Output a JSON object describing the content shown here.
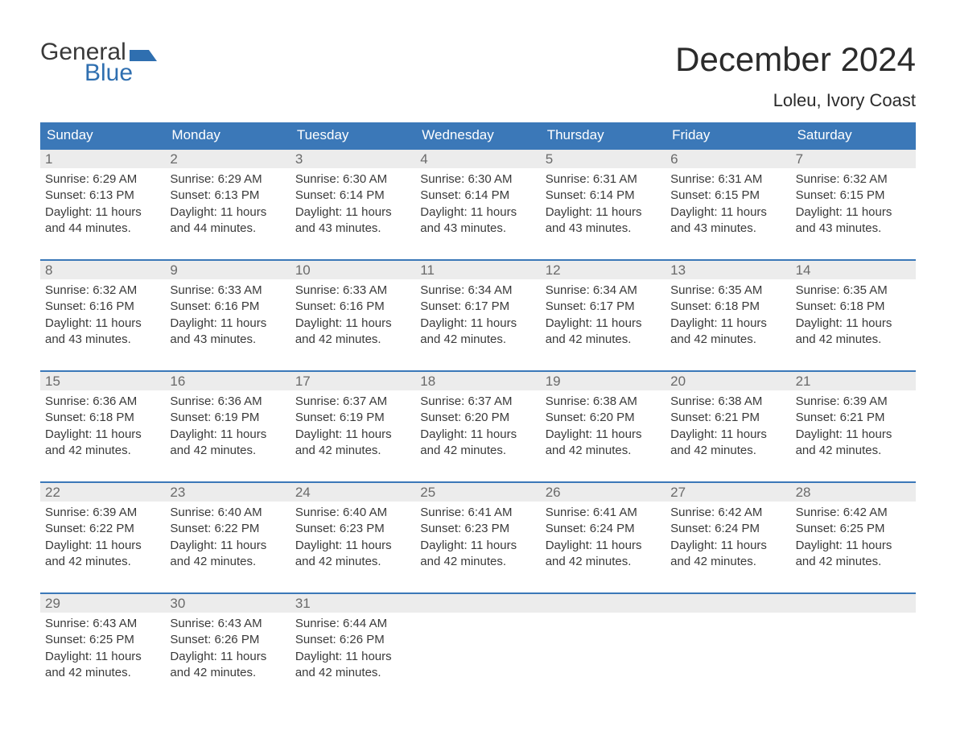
{
  "logo": {
    "text_general": "General",
    "text_blue": "Blue",
    "brand_color": "#2f6fb0"
  },
  "title": "December 2024",
  "location": "Loleu, Ivory Coast",
  "colors": {
    "header_bg": "#3b78b8",
    "header_text": "#ffffff",
    "daynum_bg": "#ececec",
    "daynum_text": "#6a6a6a",
    "body_text": "#3a3a3a",
    "week_border": "#3b78b8",
    "page_bg": "#ffffff"
  },
  "fonts": {
    "title_size_pt": 32,
    "location_size_pt": 17,
    "dow_size_pt": 13,
    "daynum_size_pt": 13,
    "body_size_pt": 11
  },
  "days_of_week": [
    "Sunday",
    "Monday",
    "Tuesday",
    "Wednesday",
    "Thursday",
    "Friday",
    "Saturday"
  ],
  "weeks": [
    [
      {
        "n": "1",
        "sunrise": "Sunrise: 6:29 AM",
        "sunset": "Sunset: 6:13 PM",
        "dl1": "Daylight: 11 hours",
        "dl2": "and 44 minutes."
      },
      {
        "n": "2",
        "sunrise": "Sunrise: 6:29 AM",
        "sunset": "Sunset: 6:13 PM",
        "dl1": "Daylight: 11 hours",
        "dl2": "and 44 minutes."
      },
      {
        "n": "3",
        "sunrise": "Sunrise: 6:30 AM",
        "sunset": "Sunset: 6:14 PM",
        "dl1": "Daylight: 11 hours",
        "dl2": "and 43 minutes."
      },
      {
        "n": "4",
        "sunrise": "Sunrise: 6:30 AM",
        "sunset": "Sunset: 6:14 PM",
        "dl1": "Daylight: 11 hours",
        "dl2": "and 43 minutes."
      },
      {
        "n": "5",
        "sunrise": "Sunrise: 6:31 AM",
        "sunset": "Sunset: 6:14 PM",
        "dl1": "Daylight: 11 hours",
        "dl2": "and 43 minutes."
      },
      {
        "n": "6",
        "sunrise": "Sunrise: 6:31 AM",
        "sunset": "Sunset: 6:15 PM",
        "dl1": "Daylight: 11 hours",
        "dl2": "and 43 minutes."
      },
      {
        "n": "7",
        "sunrise": "Sunrise: 6:32 AM",
        "sunset": "Sunset: 6:15 PM",
        "dl1": "Daylight: 11 hours",
        "dl2": "and 43 minutes."
      }
    ],
    [
      {
        "n": "8",
        "sunrise": "Sunrise: 6:32 AM",
        "sunset": "Sunset: 6:16 PM",
        "dl1": "Daylight: 11 hours",
        "dl2": "and 43 minutes."
      },
      {
        "n": "9",
        "sunrise": "Sunrise: 6:33 AM",
        "sunset": "Sunset: 6:16 PM",
        "dl1": "Daylight: 11 hours",
        "dl2": "and 43 minutes."
      },
      {
        "n": "10",
        "sunrise": "Sunrise: 6:33 AM",
        "sunset": "Sunset: 6:16 PM",
        "dl1": "Daylight: 11 hours",
        "dl2": "and 42 minutes."
      },
      {
        "n": "11",
        "sunrise": "Sunrise: 6:34 AM",
        "sunset": "Sunset: 6:17 PM",
        "dl1": "Daylight: 11 hours",
        "dl2": "and 42 minutes."
      },
      {
        "n": "12",
        "sunrise": "Sunrise: 6:34 AM",
        "sunset": "Sunset: 6:17 PM",
        "dl1": "Daylight: 11 hours",
        "dl2": "and 42 minutes."
      },
      {
        "n": "13",
        "sunrise": "Sunrise: 6:35 AM",
        "sunset": "Sunset: 6:18 PM",
        "dl1": "Daylight: 11 hours",
        "dl2": "and 42 minutes."
      },
      {
        "n": "14",
        "sunrise": "Sunrise: 6:35 AM",
        "sunset": "Sunset: 6:18 PM",
        "dl1": "Daylight: 11 hours",
        "dl2": "and 42 minutes."
      }
    ],
    [
      {
        "n": "15",
        "sunrise": "Sunrise: 6:36 AM",
        "sunset": "Sunset: 6:18 PM",
        "dl1": "Daylight: 11 hours",
        "dl2": "and 42 minutes."
      },
      {
        "n": "16",
        "sunrise": "Sunrise: 6:36 AM",
        "sunset": "Sunset: 6:19 PM",
        "dl1": "Daylight: 11 hours",
        "dl2": "and 42 minutes."
      },
      {
        "n": "17",
        "sunrise": "Sunrise: 6:37 AM",
        "sunset": "Sunset: 6:19 PM",
        "dl1": "Daylight: 11 hours",
        "dl2": "and 42 minutes."
      },
      {
        "n": "18",
        "sunrise": "Sunrise: 6:37 AM",
        "sunset": "Sunset: 6:20 PM",
        "dl1": "Daylight: 11 hours",
        "dl2": "and 42 minutes."
      },
      {
        "n": "19",
        "sunrise": "Sunrise: 6:38 AM",
        "sunset": "Sunset: 6:20 PM",
        "dl1": "Daylight: 11 hours",
        "dl2": "and 42 minutes."
      },
      {
        "n": "20",
        "sunrise": "Sunrise: 6:38 AM",
        "sunset": "Sunset: 6:21 PM",
        "dl1": "Daylight: 11 hours",
        "dl2": "and 42 minutes."
      },
      {
        "n": "21",
        "sunrise": "Sunrise: 6:39 AM",
        "sunset": "Sunset: 6:21 PM",
        "dl1": "Daylight: 11 hours",
        "dl2": "and 42 minutes."
      }
    ],
    [
      {
        "n": "22",
        "sunrise": "Sunrise: 6:39 AM",
        "sunset": "Sunset: 6:22 PM",
        "dl1": "Daylight: 11 hours",
        "dl2": "and 42 minutes."
      },
      {
        "n": "23",
        "sunrise": "Sunrise: 6:40 AM",
        "sunset": "Sunset: 6:22 PM",
        "dl1": "Daylight: 11 hours",
        "dl2": "and 42 minutes."
      },
      {
        "n": "24",
        "sunrise": "Sunrise: 6:40 AM",
        "sunset": "Sunset: 6:23 PM",
        "dl1": "Daylight: 11 hours",
        "dl2": "and 42 minutes."
      },
      {
        "n": "25",
        "sunrise": "Sunrise: 6:41 AM",
        "sunset": "Sunset: 6:23 PM",
        "dl1": "Daylight: 11 hours",
        "dl2": "and 42 minutes."
      },
      {
        "n": "26",
        "sunrise": "Sunrise: 6:41 AM",
        "sunset": "Sunset: 6:24 PM",
        "dl1": "Daylight: 11 hours",
        "dl2": "and 42 minutes."
      },
      {
        "n": "27",
        "sunrise": "Sunrise: 6:42 AM",
        "sunset": "Sunset: 6:24 PM",
        "dl1": "Daylight: 11 hours",
        "dl2": "and 42 minutes."
      },
      {
        "n": "28",
        "sunrise": "Sunrise: 6:42 AM",
        "sunset": "Sunset: 6:25 PM",
        "dl1": "Daylight: 11 hours",
        "dl2": "and 42 minutes."
      }
    ],
    [
      {
        "n": "29",
        "sunrise": "Sunrise: 6:43 AM",
        "sunset": "Sunset: 6:25 PM",
        "dl1": "Daylight: 11 hours",
        "dl2": "and 42 minutes."
      },
      {
        "n": "30",
        "sunrise": "Sunrise: 6:43 AM",
        "sunset": "Sunset: 6:26 PM",
        "dl1": "Daylight: 11 hours",
        "dl2": "and 42 minutes."
      },
      {
        "n": "31",
        "sunrise": "Sunrise: 6:44 AM",
        "sunset": "Sunset: 6:26 PM",
        "dl1": "Daylight: 11 hours",
        "dl2": "and 42 minutes."
      },
      {
        "empty": true
      },
      {
        "empty": true
      },
      {
        "empty": true
      },
      {
        "empty": true
      }
    ]
  ]
}
